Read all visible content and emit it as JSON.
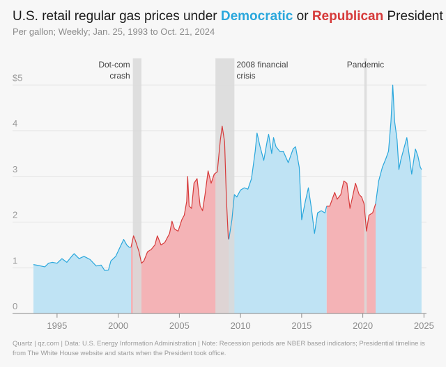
{
  "header": {
    "title_before": "U.S. retail regular gas prices under ",
    "title_dem": "Democratic",
    "title_mid": " or ",
    "title_rep": "Republican",
    "title_after": " President",
    "subtitle": "Per gallon; Weekly; Jan. 25, 1993 to Oct. 21, 2024"
  },
  "footer": {
    "note": "Quartz | qz.com | Data: U.S. Energy Information Administration | Note: Recession periods are NBER based indicators; Presidential timeline is from The White House website and starts when the President took office."
  },
  "colors": {
    "democratic": "#2aa7dc",
    "democratic_fill": "#bfe3f4",
    "republican": "#d63a3a",
    "republican_fill": "#f4b3b6",
    "recession": "#d9d9d9",
    "axis": "#9a9a9a",
    "grid": "#e3e3e3"
  },
  "chart_data": {
    "type": "area",
    "x_unit": "year",
    "xlim": [
      1993.07,
      2024.8
    ],
    "ylim": [
      0,
      5.3
    ],
    "xticks": [
      {
        "value": 1995,
        "label": "1995"
      },
      {
        "value": 2000,
        "label": "2000"
      },
      {
        "value": 2005,
        "label": "2005"
      },
      {
        "value": 2010,
        "label": "2010"
      },
      {
        "value": 2015,
        "label": "2015"
      },
      {
        "value": 2020,
        "label": "2020"
      },
      {
        "value": 2025,
        "label": "2025"
      }
    ],
    "yticks": [
      {
        "value": 0,
        "label": "0"
      },
      {
        "value": 1,
        "label": "1"
      },
      {
        "value": 2,
        "label": "2"
      },
      {
        "value": 3,
        "label": "3"
      },
      {
        "value": 4,
        "label": "4"
      },
      {
        "value": 5,
        "label": "$5"
      }
    ],
    "grid": true,
    "periods": [
      {
        "party": "democratic",
        "start": 1993.07,
        "end": 2001.05
      },
      {
        "party": "republican",
        "start": 2001.05,
        "end": 2009.05
      },
      {
        "party": "democratic",
        "start": 2009.05,
        "end": 2017.05
      },
      {
        "party": "republican",
        "start": 2017.05,
        "end": 2021.05
      },
      {
        "party": "democratic",
        "start": 2021.05,
        "end": 2024.8
      }
    ],
    "recessions": [
      {
        "start": 2001.2,
        "end": 2001.9,
        "label": "Dot-com crash",
        "lines": [
          "Dot-com",
          "crash"
        ],
        "label_side": "left"
      },
      {
        "start": 2007.95,
        "end": 2009.5,
        "label": "2008 financial crisis",
        "lines": [
          "2008 financial",
          "crisis"
        ],
        "label_side": "right"
      },
      {
        "start": 2020.12,
        "end": 2020.32,
        "label": "Pandemic",
        "lines": [
          "Pandemic"
        ],
        "label_side": "center"
      }
    ],
    "series": [
      {
        "x": [
          1993.07,
          1993.5,
          1994.0,
          1994.3,
          1994.6,
          1995.0,
          1995.4,
          1995.8,
          1996.2,
          1996.4,
          1996.8,
          1997.2,
          1997.7,
          1998.2,
          1998.6,
          1998.9,
          1999.2,
          1999.4,
          1999.8,
          2000.2,
          2000.45,
          2000.7,
          2000.9,
          2001.05,
          2001.25,
          2001.4,
          2001.7,
          2001.9,
          2002.1,
          2002.4,
          2002.7,
          2003.0,
          2003.2,
          2003.5,
          2003.8,
          2004.2,
          2004.4,
          2004.6,
          2004.9,
          2005.2,
          2005.4,
          2005.6,
          2005.68,
          2005.8,
          2006.0,
          2006.2,
          2006.45,
          2006.7,
          2006.9,
          2007.1,
          2007.35,
          2007.6,
          2007.85,
          2008.1,
          2008.35,
          2008.5,
          2008.7,
          2008.85,
          2009.0,
          2009.05,
          2009.3,
          2009.5,
          2009.7,
          2010.0,
          2010.3,
          2010.6,
          2010.9,
          2011.2,
          2011.35,
          2011.6,
          2011.9,
          2012.2,
          2012.3,
          2012.55,
          2012.7,
          2012.9,
          2013.2,
          2013.5,
          2013.9,
          2014.3,
          2014.5,
          2014.8,
          2015.0,
          2015.3,
          2015.55,
          2015.8,
          2016.05,
          2016.3,
          2016.6,
          2016.9,
          2017.05,
          2017.3,
          2017.7,
          2017.9,
          2018.2,
          2018.45,
          2018.7,
          2018.95,
          2019.2,
          2019.4,
          2019.7,
          2019.9,
          2020.1,
          2020.3,
          2020.5,
          2020.8,
          2021.05,
          2021.3,
          2021.6,
          2021.9,
          2022.1,
          2022.3,
          2022.45,
          2022.6,
          2022.8,
          2022.95,
          2023.1,
          2023.3,
          2023.6,
          2023.8,
          2024.0,
          2024.3,
          2024.5,
          2024.7,
          2024.8
        ],
        "y": [
          1.07,
          1.05,
          1.02,
          1.1,
          1.12,
          1.1,
          1.2,
          1.12,
          1.25,
          1.31,
          1.2,
          1.25,
          1.18,
          1.04,
          1.06,
          0.94,
          0.95,
          1.15,
          1.25,
          1.48,
          1.62,
          1.5,
          1.45,
          1.45,
          1.7,
          1.6,
          1.35,
          1.1,
          1.15,
          1.35,
          1.4,
          1.5,
          1.7,
          1.5,
          1.55,
          1.75,
          2.02,
          1.85,
          1.8,
          2.05,
          2.15,
          2.45,
          3.0,
          2.35,
          2.3,
          2.85,
          2.95,
          2.35,
          2.25,
          2.6,
          3.12,
          2.85,
          3.05,
          3.1,
          3.8,
          4.1,
          3.75,
          2.5,
          1.65,
          1.62,
          2.05,
          2.6,
          2.55,
          2.7,
          2.75,
          2.72,
          2.95,
          3.55,
          3.95,
          3.65,
          3.35,
          3.8,
          3.92,
          3.5,
          3.85,
          3.65,
          3.55,
          3.55,
          3.3,
          3.6,
          3.65,
          3.2,
          2.05,
          2.45,
          2.75,
          2.3,
          1.75,
          2.2,
          2.25,
          2.2,
          2.35,
          2.35,
          2.65,
          2.5,
          2.6,
          2.9,
          2.85,
          2.3,
          2.6,
          2.85,
          2.6,
          2.55,
          2.4,
          1.8,
          2.15,
          2.2,
          2.4,
          2.9,
          3.2,
          3.4,
          3.55,
          4.2,
          5.0,
          4.2,
          3.8,
          3.15,
          3.35,
          3.55,
          3.85,
          3.45,
          3.05,
          3.6,
          3.45,
          3.2,
          3.15
        ]
      }
    ]
  }
}
